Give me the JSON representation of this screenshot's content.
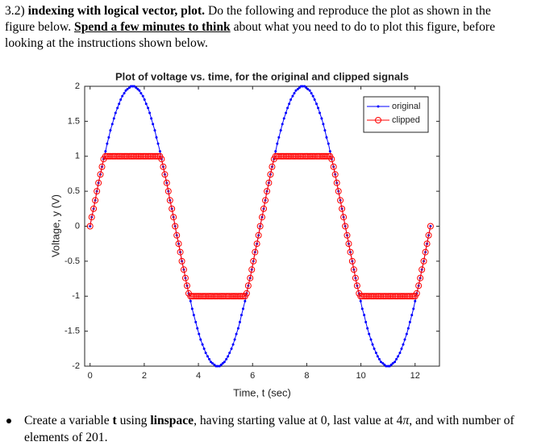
{
  "header": {
    "number": "3.2)",
    "bold": "indexing with logical vector, plot.",
    "text1": "Do the following and reproduce the plot as shown in the figure below.",
    "underline": "Spend a few minutes to think",
    "text2": "about what you need to do to plot this figure, before looking at the instructions shown below."
  },
  "chart_data": {
    "type": "line",
    "title": "Plot of voltage vs. time, for the original and clipped signals",
    "x_label": "Time, t (sec)",
    "y_label": "Voltage, y (V)",
    "xlim": [
      -0.2,
      12.9
    ],
    "ylim": [
      -2,
      2
    ],
    "xticks": [
      0,
      2,
      4,
      6,
      8,
      10,
      12
    ],
    "yticks": [
      -2,
      -1.5,
      -1,
      -0.5,
      0,
      0.5,
      1,
      1.5,
      2
    ],
    "legend": "northeast",
    "x": [
      0,
      0.06,
      0.13,
      0.19,
      0.25,
      0.31,
      0.38,
      0.44,
      0.5,
      0.57,
      0.63,
      0.69,
      0.75,
      0.82,
      0.88,
      0.94,
      1.01,
      1.07,
      1.13,
      1.19,
      1.26,
      1.32,
      1.38,
      1.45,
      1.51,
      1.57,
      1.63,
      1.7,
      1.76,
      1.82,
      1.88,
      1.95,
      2.01,
      2.07,
      2.14,
      2.2,
      2.26,
      2.32,
      2.39,
      2.45,
      2.51,
      2.58,
      2.64,
      2.7,
      2.76,
      2.83,
      2.89,
      2.95,
      3.02,
      3.08,
      3.14,
      3.2,
      3.27,
      3.33,
      3.39,
      3.46,
      3.52,
      3.58,
      3.64,
      3.71,
      3.77,
      3.83,
      3.9,
      3.96,
      4.02,
      4.08,
      4.15,
      4.21,
      4.27,
      4.34,
      4.4,
      4.46,
      4.52,
      4.59,
      4.65,
      4.71,
      4.78,
      4.84,
      4.9,
      4.96,
      5.03,
      5.09,
      5.15,
      5.22,
      5.28,
      5.34,
      5.4,
      5.47,
      5.53,
      5.59,
      5.65,
      5.72,
      5.78,
      5.84,
      5.91,
      5.97,
      6.03,
      6.09,
      6.16,
      6.22,
      6.28,
      6.35,
      6.41,
      6.47,
      6.53,
      6.6,
      6.66,
      6.72,
      6.79,
      6.85,
      6.91,
      6.97,
      7.04,
      7.1,
      7.16,
      7.23,
      7.29,
      7.35,
      7.41,
      7.48,
      7.54,
      7.6,
      7.67,
      7.73,
      7.79,
      7.85,
      7.92,
      7.98,
      8.04,
      8.11,
      8.17,
      8.23,
      8.29,
      8.36,
      8.42,
      8.48,
      8.55,
      8.61,
      8.67,
      8.73,
      8.8,
      8.86,
      8.92,
      8.99,
      9.05,
      9.11,
      9.17,
      9.24,
      9.3,
      9.36,
      9.42,
      9.49,
      9.55,
      9.61,
      9.68,
      9.74,
      9.8,
      9.86,
      9.93,
      9.99,
      10.05,
      10.12,
      10.18,
      10.24,
      10.3,
      10.37,
      10.43,
      10.49,
      10.56,
      10.62,
      10.68,
      10.74,
      10.81,
      10.87,
      10.93,
      11,
      11.06,
      11.12,
      11.18,
      11.25,
      11.31,
      11.37,
      11.44,
      11.5,
      11.56,
      11.62,
      11.69,
      11.75,
      11.81,
      11.88,
      11.94,
      12,
      12.06,
      12.13,
      12.19,
      12.25,
      12.32,
      12.38,
      12.44,
      12.5,
      12.57
    ],
    "series": [
      {
        "name": "original",
        "color": "#0000ff",
        "marker": "dot",
        "values": [
          0,
          0.13,
          0.25,
          0.37,
          0.5,
          0.62,
          0.74,
          0.85,
          0.96,
          1.07,
          1.18,
          1.27,
          1.37,
          1.46,
          1.54,
          1.62,
          1.69,
          1.75,
          1.81,
          1.86,
          1.9,
          1.94,
          1.96,
          1.98,
          2,
          2,
          2,
          1.98,
          1.96,
          1.94,
          1.9,
          1.86,
          1.81,
          1.75,
          1.69,
          1.62,
          1.54,
          1.46,
          1.37,
          1.27,
          1.18,
          1.07,
          0.96,
          0.85,
          0.74,
          0.62,
          0.5,
          0.37,
          0.25,
          0.13,
          0,
          -0.13,
          -0.25,
          -0.37,
          -0.5,
          -0.62,
          -0.74,
          -0.85,
          -0.96,
          -1.07,
          -1.18,
          -1.27,
          -1.37,
          -1.46,
          -1.54,
          -1.62,
          -1.69,
          -1.75,
          -1.81,
          -1.86,
          -1.9,
          -1.94,
          -1.96,
          -1.98,
          -2,
          -2,
          -2,
          -1.98,
          -1.96,
          -1.94,
          -1.9,
          -1.86,
          -1.81,
          -1.75,
          -1.69,
          -1.62,
          -1.54,
          -1.46,
          -1.37,
          -1.27,
          -1.18,
          -1.07,
          -0.96,
          -0.85,
          -0.74,
          -0.62,
          -0.5,
          -0.37,
          -0.25,
          -0.13,
          0,
          0.13,
          0.25,
          0.37,
          0.5,
          0.62,
          0.74,
          0.85,
          0.96,
          1.07,
          1.18,
          1.27,
          1.37,
          1.46,
          1.54,
          1.62,
          1.69,
          1.75,
          1.81,
          1.86,
          1.9,
          1.94,
          1.96,
          1.98,
          2,
          2,
          2,
          1.98,
          1.96,
          1.94,
          1.9,
          1.86,
          1.81,
          1.75,
          1.69,
          1.62,
          1.54,
          1.46,
          1.37,
          1.27,
          1.18,
          1.07,
          0.96,
          0.85,
          0.74,
          0.62,
          0.5,
          0.37,
          0.25,
          0.13,
          0,
          -0.13,
          -0.25,
          -0.37,
          -0.5,
          -0.62,
          -0.74,
          -0.85,
          -0.96,
          -1.07,
          -1.18,
          -1.27,
          -1.37,
          -1.46,
          -1.54,
          -1.62,
          -1.69,
          -1.75,
          -1.81,
          -1.86,
          -1.9,
          -1.94,
          -1.96,
          -1.98,
          -2,
          -2,
          -2,
          -1.98,
          -1.96,
          -1.94,
          -1.9,
          -1.86,
          -1.81,
          -1.75,
          -1.69,
          -1.62,
          -1.54,
          -1.46,
          -1.37,
          -1.27,
          -1.18,
          -1.07,
          -0.96,
          -0.85,
          -0.74,
          -0.62,
          -0.5,
          -0.37,
          -0.25,
          -0.13,
          0
        ]
      },
      {
        "name": "clipped",
        "color": "#ff0000",
        "marker": "circle",
        "values": [
          0,
          0.13,
          0.25,
          0.37,
          0.5,
          0.62,
          0.74,
          0.85,
          0.96,
          1,
          1,
          1,
          1,
          1,
          1,
          1,
          1,
          1,
          1,
          1,
          1,
          1,
          1,
          1,
          1,
          1,
          1,
          1,
          1,
          1,
          1,
          1,
          1,
          1,
          1,
          1,
          1,
          1,
          1,
          1,
          1,
          1,
          0.96,
          0.85,
          0.74,
          0.62,
          0.5,
          0.37,
          0.25,
          0.13,
          0,
          -0.13,
          -0.25,
          -0.37,
          -0.5,
          -0.62,
          -0.74,
          -0.85,
          -0.96,
          -1,
          -1,
          -1,
          -1,
          -1,
          -1,
          -1,
          -1,
          -1,
          -1,
          -1,
          -1,
          -1,
          -1,
          -1,
          -1,
          -1,
          -1,
          -1,
          -1,
          -1,
          -1,
          -1,
          -1,
          -1,
          -1,
          -1,
          -1,
          -1,
          -1,
          -1,
          -1,
          -1,
          -0.96,
          -0.85,
          -0.74,
          -0.62,
          -0.5,
          -0.37,
          -0.25,
          -0.13,
          0,
          0.13,
          0.25,
          0.37,
          0.5,
          0.62,
          0.74,
          0.85,
          0.96,
          1,
          1,
          1,
          1,
          1,
          1,
          1,
          1,
          1,
          1,
          1,
          1,
          1,
          1,
          1,
          1,
          1,
          1,
          1,
          1,
          1,
          1,
          1,
          1,
          1,
          1,
          1,
          1,
          1,
          1,
          1,
          1,
          1,
          0.96,
          0.85,
          0.74,
          0.62,
          0.5,
          0.37,
          0.25,
          0.13,
          0,
          -0.13,
          -0.25,
          -0.37,
          -0.5,
          -0.62,
          -0.74,
          -0.85,
          -0.96,
          -1,
          -1,
          -1,
          -1,
          -1,
          -1,
          -1,
          -1,
          -1,
          -1,
          -1,
          -1,
          -1,
          -1,
          -1,
          -1,
          -1,
          -1,
          -1,
          -1,
          -1,
          -1,
          -1,
          -1,
          -1,
          -1,
          -1,
          -1,
          -1,
          -1,
          -1,
          -1,
          -1,
          -0.96,
          -0.85,
          -0.74,
          -0.62,
          -0.5,
          -0.37,
          -0.25,
          -0.13,
          0
        ]
      }
    ]
  },
  "bullet": {
    "text1": "Create a variable",
    "var": "t",
    "text2": "using",
    "func": "linspace",
    "text3": ", having starting value at 0, last value at 4",
    "pi": "π",
    "text4": ", and with number of elements of 201."
  }
}
